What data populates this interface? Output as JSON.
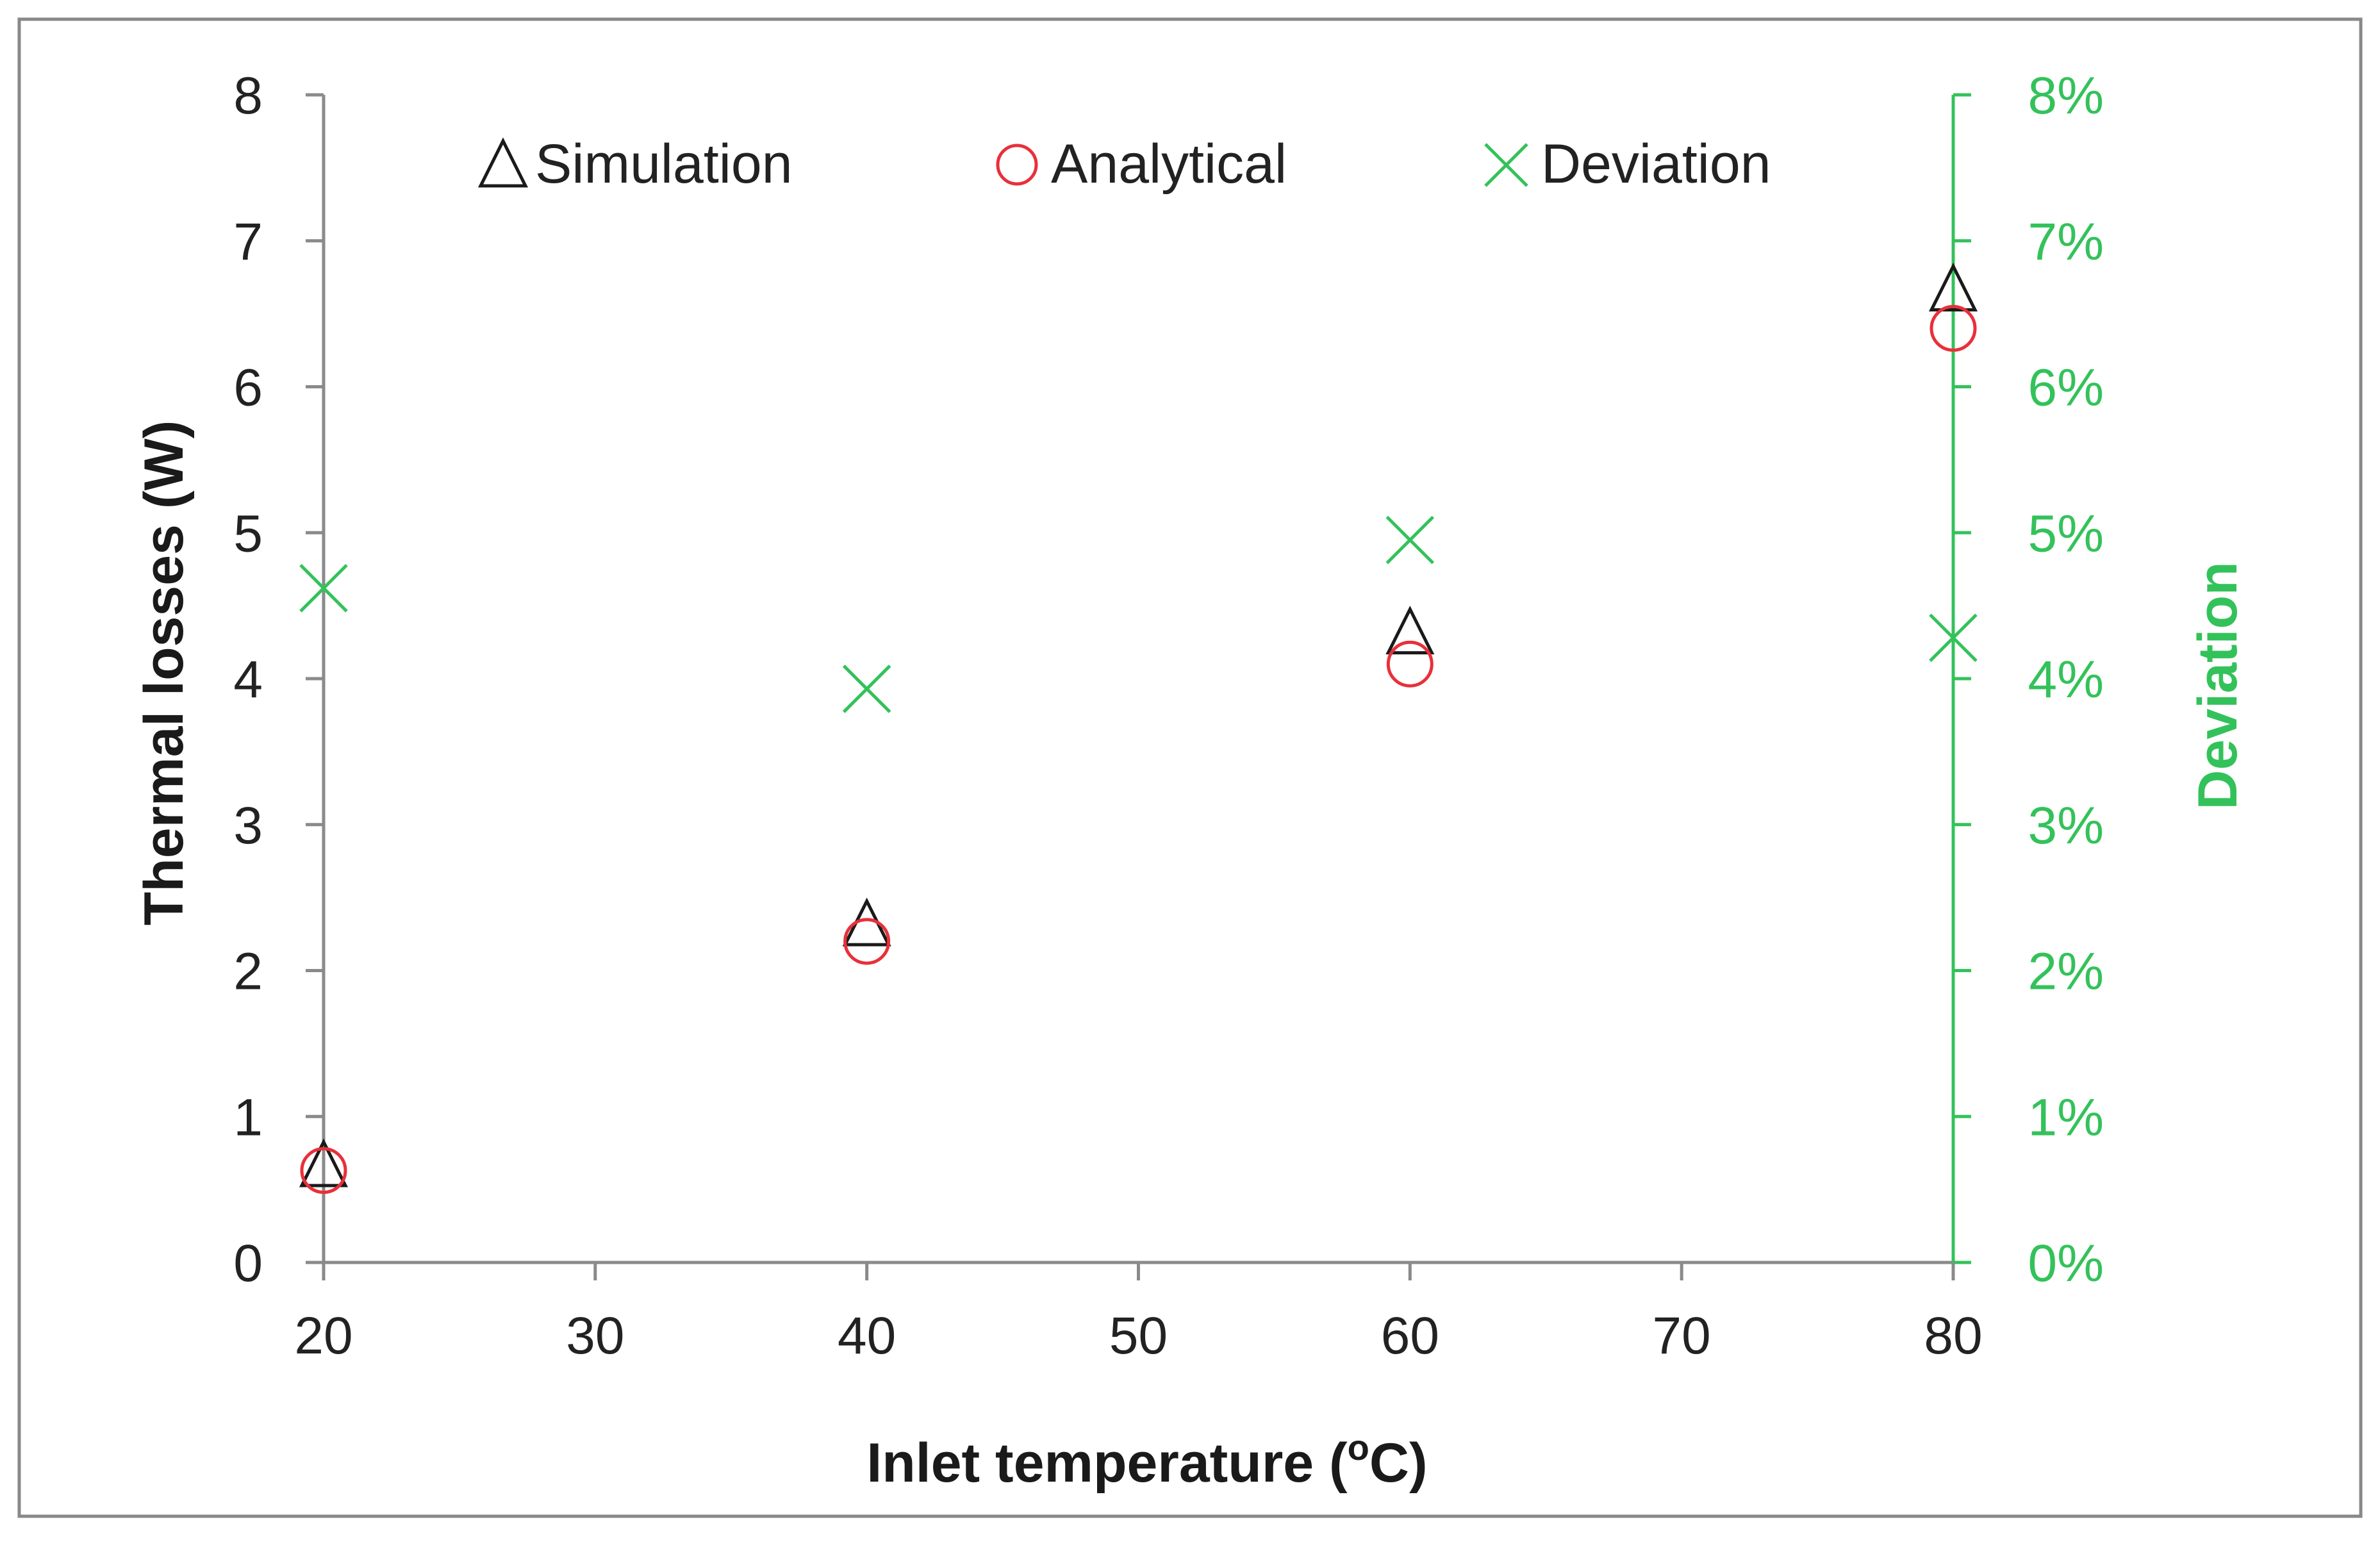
{
  "chart_data": {
    "type": "scatter",
    "title": "",
    "xlabel": "Inlet temperature (",
    "xlabel_sup": "o",
    "xlabel_end": "C)",
    "ylabel": "Thermal losses (W)",
    "y2label": "Deviation",
    "x": [
      20,
      40,
      60,
      80
    ],
    "xlim": [
      20,
      80
    ],
    "ylim": [
      0,
      8
    ],
    "y2lim": [
      0,
      8
    ],
    "xticks": [
      "20",
      "30",
      "40",
      "50",
      "60",
      "70",
      "80"
    ],
    "yticks": [
      "0",
      "1",
      "2",
      "3",
      "4",
      "5",
      "6",
      "7",
      "8"
    ],
    "y2ticks": [
      "0%",
      "1%",
      "2%",
      "3%",
      "4%",
      "5%",
      "6%",
      "7%",
      "8%"
    ],
    "legend_position": "top",
    "grid": false,
    "series": [
      {
        "name": "Simulation",
        "axis": "left",
        "marker": "triangle",
        "color": "#1a1a1a",
        "values": [
          0.65,
          2.3,
          4.3,
          6.65
        ]
      },
      {
        "name": "Analytical",
        "axis": "left",
        "marker": "circle",
        "color": "#e8303a",
        "values": [
          0.63,
          2.2,
          4.1,
          6.4
        ]
      },
      {
        "name": "Deviation",
        "axis": "right",
        "marker": "x",
        "color": "#33c25a",
        "values": [
          4.62,
          3.93,
          4.95,
          4.28
        ]
      }
    ]
  }
}
